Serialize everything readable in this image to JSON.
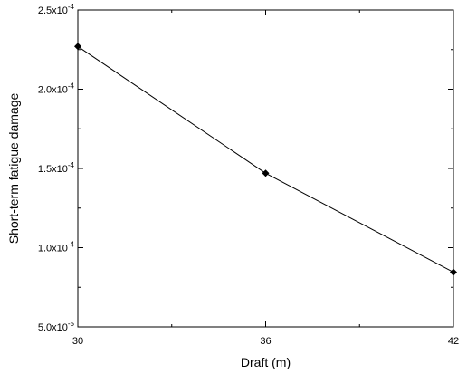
{
  "chart_data": {
    "type": "line",
    "title": "",
    "xlabel": "Draft (m)",
    "ylabel": "Short-term fatigue damage",
    "xlim": [
      30,
      42
    ],
    "ylim": [
      5e-05,
      0.00025
    ],
    "xticks": [
      {
        "value": 30,
        "label": "30"
      },
      {
        "value": 36,
        "label": "36"
      },
      {
        "value": 42,
        "label": "42"
      }
    ],
    "xminor": [
      33,
      39
    ],
    "yticks": [
      {
        "value": 5e-05,
        "mantissa": "5.0x10",
        "exp": "-5"
      },
      {
        "value": 0.0001,
        "mantissa": "1.0x10",
        "exp": "-4"
      },
      {
        "value": 0.00015,
        "mantissa": "1.5x10",
        "exp": "-4"
      },
      {
        "value": 0.0002,
        "mantissa": "2.0x10",
        "exp": "-4"
      },
      {
        "value": 0.00025,
        "mantissa": "2.5x10",
        "exp": "-4"
      }
    ],
    "series": [
      {
        "x": [
          30,
          36,
          42
        ],
        "y": [
          0.000227,
          0.000147,
          8.45e-05
        ],
        "marker": "diamond",
        "color": "#000000"
      }
    ],
    "grid": false,
    "legend": "none"
  }
}
